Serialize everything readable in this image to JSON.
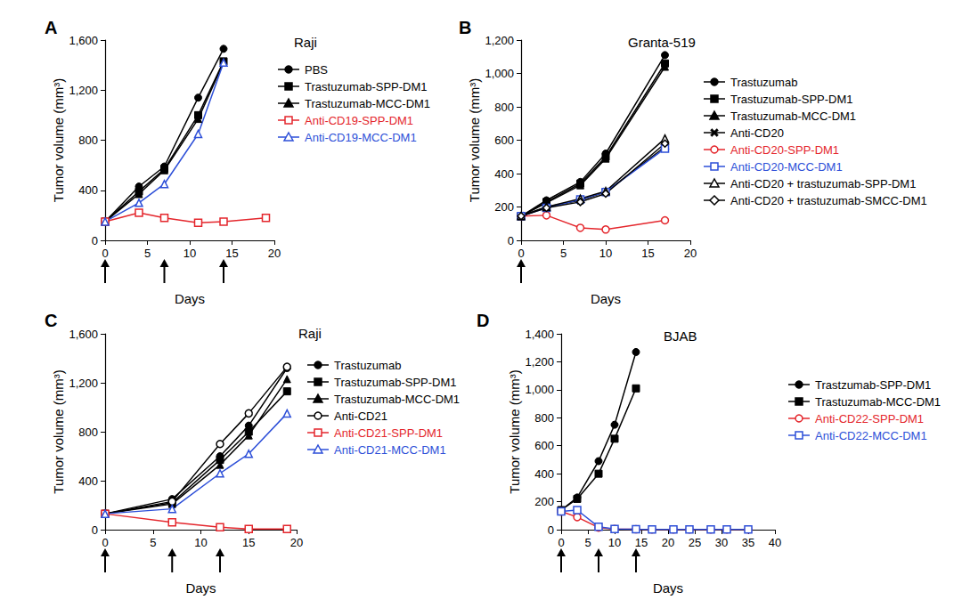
{
  "chart_data": [
    {
      "type": "line",
      "panel": "A",
      "title": "Raji",
      "x_label": "Days",
      "y_label": "Tumor volume (mm³)",
      "xlim": [
        0,
        20
      ],
      "xticks": [
        0,
        5,
        10,
        15,
        20
      ],
      "ylim": [
        0,
        1600
      ],
      "yticks": [
        0,
        400,
        800,
        1200,
        1600
      ],
      "grid": false,
      "dose_days": [
        0,
        7,
        14
      ],
      "series": [
        {
          "name": "PBS",
          "color": "#000000",
          "marker": "circle",
          "x": [
            0,
            4,
            7,
            11,
            14
          ],
          "values": [
            150,
            430,
            590,
            1140,
            1530
          ]
        },
        {
          "name": "Trastuzumab-SPP-DM1",
          "color": "#000000",
          "marker": "square",
          "x": [
            0,
            4,
            7,
            11,
            14
          ],
          "values": [
            150,
            390,
            570,
            1000,
            1430
          ]
        },
        {
          "name": "Trastuzumab-MCC-DM1",
          "color": "#000000",
          "marker": "triangle",
          "x": [
            0,
            4,
            7,
            11,
            14
          ],
          "values": [
            150,
            370,
            560,
            970,
            1420
          ]
        },
        {
          "name": "Anti-CD19-SPP-DM1",
          "color": "#e4262c",
          "marker": "open-square",
          "x": [
            0,
            4,
            7,
            11,
            14,
            19
          ],
          "values": [
            150,
            220,
            180,
            140,
            150,
            180
          ]
        },
        {
          "name": "Anti-CD19-MCC-DM1",
          "color": "#2d4fd8",
          "marker": "open-triangle",
          "x": [
            0,
            4,
            7,
            11,
            14
          ],
          "values": [
            150,
            300,
            450,
            850,
            1420
          ]
        }
      ]
    },
    {
      "type": "line",
      "panel": "B",
      "title": "Granta-519",
      "x_label": "Days",
      "y_label": "Tumor volume (mm³)",
      "xlim": [
        0,
        20
      ],
      "xticks": [
        0,
        5,
        10,
        15,
        20
      ],
      "ylim": [
        0,
        1200
      ],
      "yticks": [
        0,
        200,
        400,
        600,
        800,
        1000,
        1200
      ],
      "grid": false,
      "dose_days": [
        0
      ],
      "series": [
        {
          "name": "Trastuzumab",
          "color": "#000000",
          "marker": "circle",
          "x": [
            0,
            3,
            7,
            10,
            17
          ],
          "values": [
            145,
            240,
            350,
            520,
            1110
          ]
        },
        {
          "name": "Trastuzumab-SPP-DM1",
          "color": "#000000",
          "marker": "square",
          "x": [
            0,
            3,
            7,
            10,
            17
          ],
          "values": [
            145,
            230,
            340,
            500,
            1060
          ]
        },
        {
          "name": "Trastuzumab-MCC-DM1",
          "color": "#000000",
          "marker": "triangle",
          "x": [
            0,
            3,
            7,
            10,
            17
          ],
          "values": [
            145,
            225,
            330,
            490,
            1040
          ]
        },
        {
          "name": "Anti-CD20",
          "color": "#000000",
          "marker": "cross",
          "x": [
            0,
            3,
            7,
            10,
            17
          ],
          "values": [
            145,
            200,
            240,
            290,
            560
          ]
        },
        {
          "name": "Anti-CD20-SPP-DM1",
          "color": "#e4262c",
          "marker": "open-circle",
          "x": [
            0,
            3,
            7,
            10,
            17
          ],
          "values": [
            145,
            150,
            75,
            65,
            120
          ]
        },
        {
          "name": "Anti-CD20-MCC-DM1",
          "color": "#2d4fd8",
          "marker": "open-square",
          "x": [
            0,
            3,
            7,
            10,
            17
          ],
          "values": [
            145,
            195,
            245,
            290,
            550
          ]
        },
        {
          "name": "Anti-CD20 + trastuzumab-SPP-DM1",
          "color": "#000000",
          "marker": "open-triangle",
          "x": [
            0,
            3,
            7,
            10,
            17
          ],
          "values": [
            145,
            200,
            250,
            295,
            610
          ]
        },
        {
          "name": "Anti-CD20 + trastuzumab-SMCC-DM1",
          "color": "#000000",
          "marker": "open-diamond",
          "x": [
            0,
            3,
            7,
            10,
            17
          ],
          "values": [
            145,
            195,
            230,
            280,
            580
          ]
        }
      ]
    },
    {
      "type": "line",
      "panel": "C",
      "title": "Raji",
      "x_label": "Days",
      "y_label": "Tumor volume (mm³)",
      "xlim": [
        0,
        20
      ],
      "xticks": [
        0,
        5,
        10,
        15,
        20
      ],
      "ylim": [
        0,
        1600
      ],
      "yticks": [
        0,
        400,
        800,
        1200,
        1600
      ],
      "grid": false,
      "dose_days": [
        0,
        7,
        12
      ],
      "series": [
        {
          "name": "Trastuzumab",
          "color": "#000000",
          "marker": "circle",
          "x": [
            0,
            7,
            12,
            15,
            19
          ],
          "values": [
            130,
            250,
            600,
            850,
            1320
          ]
        },
        {
          "name": "Trastuzumab-SPP-DM1",
          "color": "#000000",
          "marker": "square",
          "x": [
            0,
            7,
            12,
            15,
            19
          ],
          "values": [
            130,
            220,
            570,
            800,
            1130
          ]
        },
        {
          "name": "Trastuzumab-MCC-DM1",
          "color": "#000000",
          "marker": "triangle",
          "x": [
            0,
            7,
            12,
            15,
            19
          ],
          "values": [
            130,
            210,
            530,
            770,
            1230
          ]
        },
        {
          "name": "Anti-CD21",
          "color": "#000000",
          "marker": "open-circle",
          "x": [
            0,
            7,
            12,
            15,
            19
          ],
          "values": [
            130,
            230,
            700,
            950,
            1330
          ]
        },
        {
          "name": "Anti-CD21-SPP-DM1",
          "color": "#e4262c",
          "marker": "open-square",
          "x": [
            0,
            7,
            12,
            15,
            19
          ],
          "values": [
            130,
            60,
            20,
            5,
            5
          ]
        },
        {
          "name": "Anti-CD21-MCC-DM1",
          "color": "#2d4fd8",
          "marker": "open-triangle",
          "x": [
            0,
            7,
            12,
            15,
            19
          ],
          "values": [
            130,
            170,
            460,
            620,
            950
          ]
        }
      ]
    },
    {
      "type": "line",
      "panel": "D",
      "title": "BJAB",
      "x_label": "Days",
      "y_label": "Tumor volume (mm³)",
      "xlim": [
        0,
        40
      ],
      "xticks": [
        0,
        5,
        10,
        15,
        20,
        25,
        30,
        35,
        40
      ],
      "ylim": [
        0,
        1400
      ],
      "yticks": [
        0,
        200,
        400,
        600,
        800,
        1000,
        1200,
        1400
      ],
      "grid": false,
      "dose_days": [
        0,
        7,
        14
      ],
      "series": [
        {
          "name": "Trastzumab-SPP-DM1",
          "color": "#000000",
          "marker": "circle",
          "x": [
            0,
            3,
            7,
            10,
            14
          ],
          "values": [
            140,
            230,
            490,
            750,
            1270
          ]
        },
        {
          "name": "Trastuzumab-MCC-DM1",
          "color": "#000000",
          "marker": "square",
          "x": [
            0,
            3,
            7,
            10,
            14
          ],
          "values": [
            140,
            220,
            400,
            650,
            1010
          ]
        },
        {
          "name": "Anti-CD22-SPP-DM1",
          "color": "#e4262c",
          "marker": "open-circle",
          "x": [
            0,
            3,
            7,
            10,
            14,
            17,
            21,
            24,
            28,
            31,
            35
          ],
          "values": [
            130,
            90,
            15,
            5,
            3,
            2,
            2,
            2,
            2,
            2,
            2
          ]
        },
        {
          "name": "Anti-CD22-MCC-DM1",
          "color": "#2d4fd8",
          "marker": "open-square",
          "x": [
            0,
            3,
            7,
            10,
            14,
            17,
            21,
            24,
            28,
            31,
            35
          ],
          "values": [
            130,
            140,
            20,
            5,
            3,
            2,
            2,
            2,
            2,
            2,
            2
          ]
        }
      ]
    }
  ]
}
